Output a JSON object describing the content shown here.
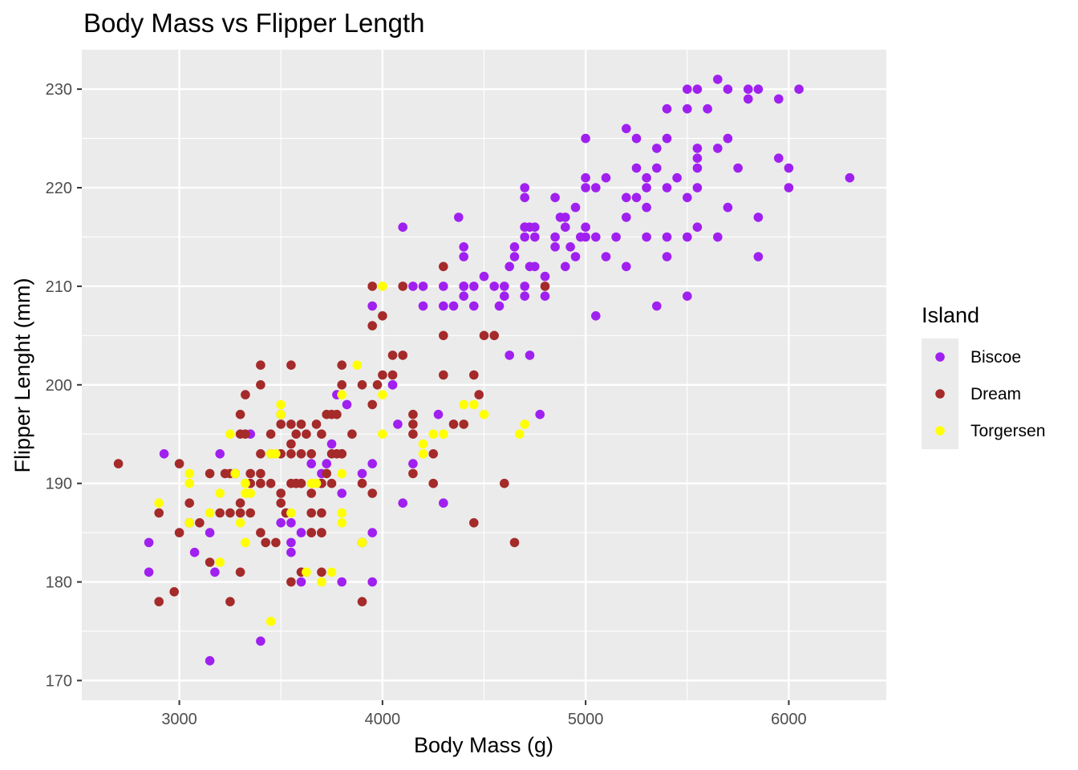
{
  "chart_data": {
    "type": "scatter",
    "title": "Body Mass vs Flipper Length",
    "xlabel": "Body Mass (g)",
    "ylabel": "Flipper Lenght (mm)",
    "xlim": [
      2520,
      6480
    ],
    "ylim": [
      168,
      234
    ],
    "x_ticks": [
      3000,
      4000,
      5000,
      6000
    ],
    "x_tick_labels": [
      "3000",
      "4000",
      "5000",
      "6000"
    ],
    "y_ticks": [
      170,
      180,
      190,
      200,
      210,
      220,
      230
    ],
    "y_tick_labels": [
      "170",
      "180",
      "190",
      "200",
      "210",
      "220",
      "230"
    ],
    "grid": true,
    "legend": {
      "title": "Island",
      "position": "right",
      "entries": [
        "Biscoe",
        "Dream",
        "Torgersen"
      ]
    },
    "colors": {
      "Biscoe": "#a020f0",
      "Dream": "#a52a2a",
      "Torgersen": "#ffff00"
    },
    "series": [
      {
        "name": "Biscoe",
        "points": [
          [
            2850,
            184
          ],
          [
            2850,
            181
          ],
          [
            2925,
            193
          ],
          [
            3075,
            183
          ],
          [
            3150,
            185
          ],
          [
            3150,
            172
          ],
          [
            3175,
            181
          ],
          [
            3200,
            193
          ],
          [
            3350,
            195
          ],
          [
            3400,
            174
          ],
          [
            3500,
            186
          ],
          [
            3550,
            186
          ],
          [
            3550,
            184
          ],
          [
            3550,
            183
          ],
          [
            3600,
            180
          ],
          [
            3600,
            185
          ],
          [
            3650,
            192
          ],
          [
            3725,
            192
          ],
          [
            3750,
            194
          ],
          [
            3775,
            199
          ],
          [
            3800,
            189
          ],
          [
            3800,
            180
          ],
          [
            3825,
            198
          ],
          [
            3900,
            191
          ],
          [
            3950,
            208
          ],
          [
            3950,
            192
          ],
          [
            3950,
            185
          ],
          [
            3950,
            180
          ],
          [
            4050,
            200
          ],
          [
            4100,
            216
          ],
          [
            4150,
            192
          ],
          [
            4100,
            188
          ],
          [
            4075,
            196
          ],
          [
            4150,
            210
          ],
          [
            4200,
            210
          ],
          [
            4200,
            208
          ],
          [
            4275,
            197
          ],
          [
            4300,
            210
          ],
          [
            4300,
            208
          ],
          [
            4300,
            188
          ],
          [
            4350,
            208
          ],
          [
            4375,
            217
          ],
          [
            4400,
            214
          ],
          [
            4400,
            213
          ],
          [
            4400,
            210
          ],
          [
            4400,
            209
          ],
          [
            4450,
            210
          ],
          [
            4450,
            208
          ],
          [
            4500,
            211
          ],
          [
            4550,
            210
          ],
          [
            4575,
            208
          ],
          [
            4600,
            210
          ],
          [
            4600,
            209
          ],
          [
            4625,
            203
          ],
          [
            4625,
            212
          ],
          [
            4650,
            213
          ],
          [
            4650,
            214
          ],
          [
            4700,
            215
          ],
          [
            4700,
            216
          ],
          [
            4700,
            219
          ],
          [
            4700,
            220
          ],
          [
            4700,
            210
          ],
          [
            4700,
            209
          ],
          [
            4725,
            216
          ],
          [
            4725,
            212
          ],
          [
            4725,
            203
          ],
          [
            4750,
            216
          ],
          [
            4750,
            212
          ],
          [
            4775,
            197
          ],
          [
            4800,
            211
          ],
          [
            4800,
            209
          ],
          [
            4850,
            219
          ],
          [
            4850,
            214
          ],
          [
            4850,
            215
          ],
          [
            4875,
            217
          ],
          [
            4900,
            217
          ],
          [
            4900,
            216
          ],
          [
            4900,
            212
          ],
          [
            4925,
            214
          ],
          [
            4950,
            218
          ],
          [
            4950,
            213
          ],
          [
            4975,
            215
          ],
          [
            5000,
            225
          ],
          [
            5000,
            221
          ],
          [
            5000,
            220
          ],
          [
            5000,
            216
          ],
          [
            5000,
            215
          ],
          [
            5050,
            220
          ],
          [
            5050,
            215
          ],
          [
            5050,
            207
          ],
          [
            5100,
            221
          ],
          [
            5100,
            213
          ],
          [
            5150,
            215
          ],
          [
            5200,
            226
          ],
          [
            5200,
            219
          ],
          [
            5200,
            217
          ],
          [
            5200,
            212
          ],
          [
            5250,
            225
          ],
          [
            5250,
            222
          ],
          [
            5250,
            219
          ],
          [
            5300,
            221
          ],
          [
            5300,
            220
          ],
          [
            5300,
            218
          ],
          [
            5300,
            215
          ],
          [
            5350,
            224
          ],
          [
            5350,
            222
          ],
          [
            5350,
            208
          ],
          [
            5400,
            228
          ],
          [
            5400,
            225
          ],
          [
            5400,
            220
          ],
          [
            5400,
            215
          ],
          [
            5400,
            213
          ],
          [
            5450,
            221
          ],
          [
            5500,
            230
          ],
          [
            5500,
            228
          ],
          [
            5500,
            219
          ],
          [
            5500,
            215
          ],
          [
            5500,
            209
          ],
          [
            5550,
            230
          ],
          [
            5550,
            224
          ],
          [
            5550,
            223
          ],
          [
            5550,
            220
          ],
          [
            5550,
            216
          ],
          [
            5550,
            222
          ],
          [
            5600,
            228
          ],
          [
            5650,
            231
          ],
          [
            5650,
            224
          ],
          [
            5650,
            215
          ],
          [
            5700,
            230
          ],
          [
            5700,
            225
          ],
          [
            5700,
            218
          ],
          [
            5750,
            222
          ],
          [
            5800,
            230
          ],
          [
            5800,
            229
          ],
          [
            5850,
            230
          ],
          [
            5850,
            217
          ],
          [
            5850,
            213
          ],
          [
            5950,
            229
          ],
          [
            5950,
            223
          ],
          [
            6000,
            222
          ],
          [
            6000,
            220
          ],
          [
            6050,
            230
          ],
          [
            6300,
            221
          ],
          [
            4050,
            200
          ],
          [
            3700,
            190
          ],
          [
            3650,
            185
          ],
          [
            4750,
            215
          ],
          [
            3700,
            191
          ],
          [
            4400,
            210
          ],
          [
            4700,
            216
          ]
        ]
      },
      {
        "name": "Dream",
        "points": [
          [
            2700,
            192
          ],
          [
            2900,
            187
          ],
          [
            2900,
            178
          ],
          [
            2975,
            179
          ],
          [
            3000,
            192
          ],
          [
            3000,
            185
          ],
          [
            3050,
            188
          ],
          [
            3050,
            186
          ],
          [
            3100,
            186
          ],
          [
            3150,
            191
          ],
          [
            3150,
            182
          ],
          [
            3200,
            187
          ],
          [
            3225,
            191
          ],
          [
            3250,
            187
          ],
          [
            3250,
            178
          ],
          [
            3275,
            191
          ],
          [
            3300,
            197
          ],
          [
            3300,
            195
          ],
          [
            3300,
            188
          ],
          [
            3300,
            187
          ],
          [
            3300,
            181
          ],
          [
            3325,
            199
          ],
          [
            3325,
            195
          ],
          [
            3350,
            191
          ],
          [
            3350,
            187
          ],
          [
            3350,
            190
          ],
          [
            3400,
            202
          ],
          [
            3400,
            200
          ],
          [
            3400,
            193
          ],
          [
            3400,
            191
          ],
          [
            3400,
            190
          ],
          [
            3400,
            185
          ],
          [
            3425,
            184
          ],
          [
            3450,
            195
          ],
          [
            3450,
            193
          ],
          [
            3450,
            190
          ],
          [
            3475,
            184
          ],
          [
            3500,
            197
          ],
          [
            3500,
            196
          ],
          [
            3500,
            193
          ],
          [
            3500,
            189
          ],
          [
            3500,
            188
          ],
          [
            3525,
            187
          ],
          [
            3550,
            202
          ],
          [
            3550,
            196
          ],
          [
            3550,
            194
          ],
          [
            3550,
            193
          ],
          [
            3550,
            190
          ],
          [
            3550,
            180
          ],
          [
            3575,
            195
          ],
          [
            3575,
            190
          ],
          [
            3600,
            196
          ],
          [
            3600,
            193
          ],
          [
            3600,
            190
          ],
          [
            3625,
            195
          ],
          [
            3650,
            185
          ],
          [
            3650,
            187
          ],
          [
            3650,
            189
          ],
          [
            3650,
            193
          ],
          [
            3675,
            196
          ],
          [
            3700,
            195
          ],
          [
            3700,
            190
          ],
          [
            3700,
            185
          ],
          [
            3700,
            181
          ],
          [
            3700,
            187
          ],
          [
            3725,
            197
          ],
          [
            3725,
            191
          ],
          [
            3750,
            197
          ],
          [
            3750,
            193
          ],
          [
            3750,
            190
          ],
          [
            3775,
            193
          ],
          [
            3800,
            202
          ],
          [
            3800,
            200
          ],
          [
            3800,
            193
          ],
          [
            3850,
            195
          ],
          [
            3900,
            200
          ],
          [
            3900,
            190
          ],
          [
            3900,
            184
          ],
          [
            3900,
            178
          ],
          [
            3950,
            210
          ],
          [
            3950,
            206
          ],
          [
            3950,
            198
          ],
          [
            3950,
            189
          ],
          [
            3975,
            200
          ],
          [
            4000,
            207
          ],
          [
            4000,
            201
          ],
          [
            4050,
            203
          ],
          [
            4050,
            201
          ],
          [
            4100,
            210
          ],
          [
            4100,
            203
          ],
          [
            4150,
            197
          ],
          [
            4150,
            196
          ],
          [
            4150,
            195
          ],
          [
            4150,
            191
          ],
          [
            4250,
            190
          ],
          [
            4250,
            193
          ],
          [
            4300,
            212
          ],
          [
            4300,
            205
          ],
          [
            4300,
            201
          ],
          [
            4350,
            196
          ],
          [
            4400,
            196
          ],
          [
            4450,
            201
          ],
          [
            4450,
            186
          ],
          [
            4475,
            199
          ],
          [
            4500,
            205
          ],
          [
            4550,
            205
          ],
          [
            4600,
            190
          ],
          [
            4650,
            184
          ],
          [
            4800,
            210
          ],
          [
            3600,
            181
          ],
          [
            3800,
            193
          ],
          [
            3700,
            185
          ],
          [
            3575,
            190
          ],
          [
            3400,
            190
          ],
          [
            3250,
            191
          ],
          [
            3525,
            187
          ],
          [
            3775,
            197
          ]
        ]
      },
      {
        "name": "Torgersen",
        "points": [
          [
            2900,
            188
          ],
          [
            3050,
            191
          ],
          [
            3050,
            190
          ],
          [
            3050,
            186
          ],
          [
            3150,
            187
          ],
          [
            3200,
            189
          ],
          [
            3200,
            182
          ],
          [
            3250,
            195
          ],
          [
            3275,
            191
          ],
          [
            3300,
            186
          ],
          [
            3325,
            189
          ],
          [
            3325,
            190
          ],
          [
            3325,
            184
          ],
          [
            3350,
            189
          ],
          [
            3450,
            193
          ],
          [
            3450,
            176
          ],
          [
            3475,
            193
          ],
          [
            3500,
            198
          ],
          [
            3500,
            197
          ],
          [
            3550,
            187
          ],
          [
            3625,
            181
          ],
          [
            3650,
            190
          ],
          [
            3675,
            190
          ],
          [
            3700,
            180
          ],
          [
            3750,
            181
          ],
          [
            3800,
            199
          ],
          [
            3800,
            191
          ],
          [
            3800,
            187
          ],
          [
            3800,
            186
          ],
          [
            3875,
            202
          ],
          [
            3900,
            184
          ],
          [
            4000,
            210
          ],
          [
            4000,
            199
          ],
          [
            4000,
            195
          ],
          [
            4200,
            194
          ],
          [
            4200,
            193
          ],
          [
            4250,
            195
          ],
          [
            4300,
            195
          ],
          [
            4400,
            198
          ],
          [
            4450,
            198
          ],
          [
            4500,
            197
          ],
          [
            4675,
            195
          ],
          [
            4700,
            196
          ],
          [
            3325,
            190
          ],
          [
            3800,
            187
          ]
        ]
      }
    ]
  }
}
